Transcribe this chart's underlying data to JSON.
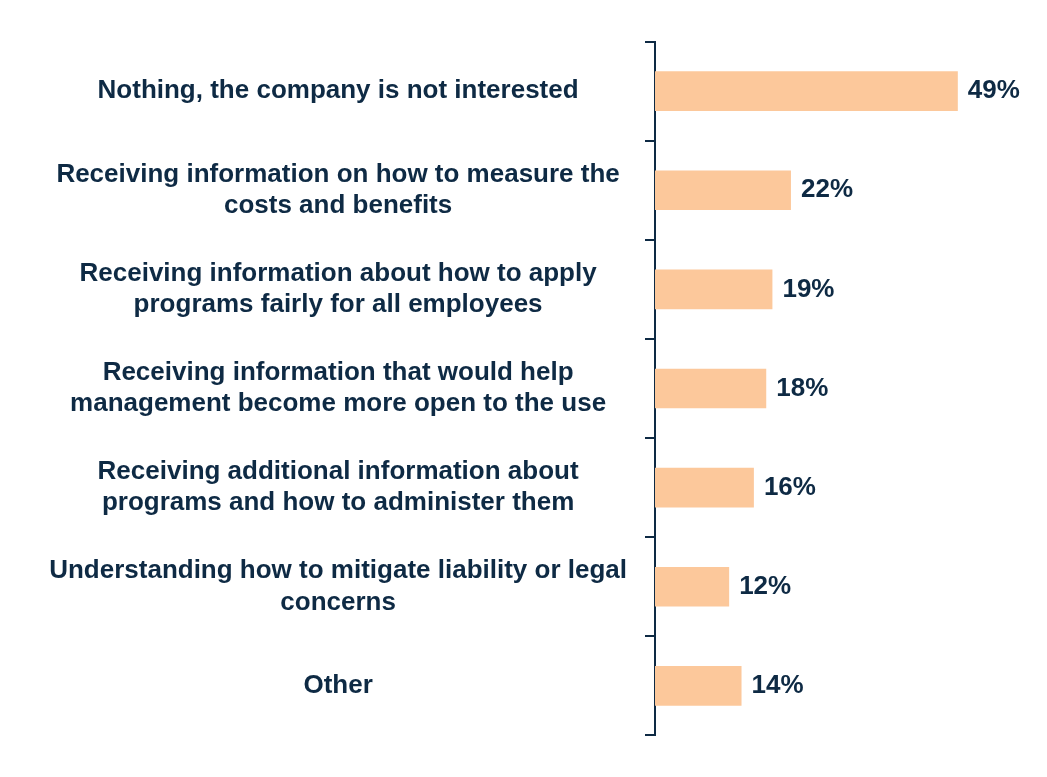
{
  "chart_data": {
    "type": "bar",
    "orientation": "horizontal",
    "categories": [
      "Nothing, the company is not interested",
      "Receiving information on how to measure the costs and benefits",
      "Receiving information about how to apply programs fairly for all employees",
      "Receiving information that would help management become more open to the use",
      "Receiving additional information about programs and how to administer them",
      "Understanding how to mitigate liability or legal concerns",
      "Other"
    ],
    "values": [
      49,
      22,
      19,
      18,
      16,
      12,
      14
    ],
    "value_labels": [
      "49%",
      "22%",
      "19%",
      "18%",
      "16%",
      "12%",
      "14%"
    ],
    "color": "#fcc89b",
    "tick_labels": "y",
    "grid": false,
    "legend": false
  }
}
